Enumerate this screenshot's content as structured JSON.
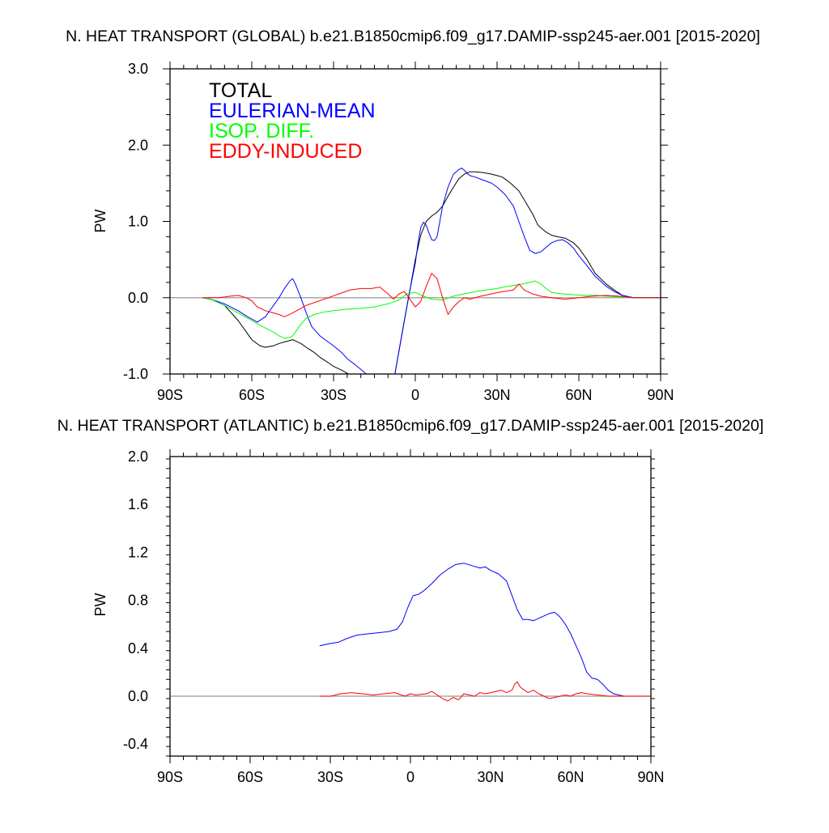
{
  "chart_data": [
    {
      "type": "line",
      "title": "N. HEAT TRANSPORT (GLOBAL) b.e21.B1850cmip6.f09_g17.DAMIP-ssp245-aer.001 [2015-2020]",
      "ylabel": "PW",
      "xlabel": "",
      "xlim": [
        -90,
        90
      ],
      "ylim": [
        -1.0,
        3.0
      ],
      "xticks": [
        -90,
        -60,
        -30,
        0,
        30,
        60,
        90
      ],
      "xtick_labels": [
        "90S",
        "60S",
        "30S",
        "0",
        "30N",
        "60N",
        "90N"
      ],
      "yticks": [
        -1.0,
        0.0,
        1.0,
        2.0,
        3.0
      ],
      "ytick_labels": [
        "-1.0",
        "0.0",
        "1.0",
        "2.0",
        "3.0"
      ],
      "zero_line": true,
      "legend_placement": "top-left",
      "series": [
        {
          "name": "TOTAL",
          "color": "#000000",
          "x": [
            -78,
            -75,
            -70,
            -65,
            -62,
            -60,
            -57,
            -55,
            -52,
            -50,
            -47,
            -45,
            -42,
            -40,
            -37,
            -35,
            -32,
            -30,
            -27,
            -25,
            -22,
            -20,
            -18,
            -15,
            -12,
            -10,
            -8,
            -6,
            -4,
            -2,
            0,
            2,
            4,
            6,
            8,
            10,
            12,
            14,
            16,
            18,
            20,
            22,
            25,
            28,
            30,
            32,
            35,
            38,
            40,
            43,
            45,
            48,
            50,
            52,
            55,
            58,
            60,
            63,
            66,
            70,
            73,
            76,
            80,
            85,
            90
          ],
          "y": [
            0.0,
            -0.02,
            -0.1,
            -0.3,
            -0.45,
            -0.55,
            -0.63,
            -0.65,
            -0.63,
            -0.6,
            -0.57,
            -0.55,
            -0.6,
            -0.65,
            -0.72,
            -0.78,
            -0.85,
            -0.9,
            -0.95,
            -0.99,
            -1.05,
            -1.1,
            -1.15,
            -1.25,
            -1.35,
            -1.4,
            -1.1,
            -0.7,
            -0.3,
            0.1,
            0.5,
            0.82,
            1.0,
            1.07,
            1.12,
            1.2,
            1.33,
            1.45,
            1.56,
            1.62,
            1.65,
            1.65,
            1.64,
            1.62,
            1.6,
            1.58,
            1.5,
            1.4,
            1.28,
            1.1,
            0.95,
            0.86,
            0.82,
            0.8,
            0.78,
            0.72,
            0.65,
            0.5,
            0.32,
            0.18,
            0.1,
            0.03,
            0.0,
            0.0,
            0.0
          ]
        },
        {
          "name": "EULERIAN-MEAN",
          "color": "#0000ff",
          "x": [
            -78,
            -75,
            -70,
            -65,
            -62,
            -60,
            -58,
            -55,
            -52,
            -50,
            -48,
            -46,
            -45,
            -44,
            -42,
            -40,
            -38,
            -35,
            -32,
            -30,
            -27,
            -25,
            -22,
            -20,
            -18,
            -15,
            -12,
            -10,
            -8,
            -6,
            -4,
            -2,
            0,
            1,
            2,
            3,
            4,
            5,
            6,
            7,
            8,
            9,
            10,
            12,
            14,
            16,
            17,
            18,
            19,
            20,
            22,
            25,
            28,
            30,
            33,
            36,
            38,
            40,
            42,
            44,
            46,
            48,
            50,
            52,
            54,
            56,
            58,
            60,
            63,
            66,
            70,
            73,
            76,
            80,
            85,
            90
          ],
          "y": [
            0.0,
            -0.02,
            -0.08,
            -0.17,
            -0.24,
            -0.28,
            -0.32,
            -0.25,
            -0.1,
            0.0,
            0.12,
            0.22,
            0.25,
            0.18,
            0.0,
            -0.2,
            -0.38,
            -0.5,
            -0.58,
            -0.63,
            -0.72,
            -0.8,
            -0.88,
            -0.94,
            -1.0,
            -1.1,
            -1.2,
            -1.3,
            -1.1,
            -0.7,
            -0.3,
            0.1,
            0.45,
            0.72,
            0.92,
            0.99,
            0.95,
            0.85,
            0.76,
            0.75,
            0.8,
            1.0,
            1.2,
            1.45,
            1.62,
            1.68,
            1.7,
            1.67,
            1.63,
            1.6,
            1.58,
            1.54,
            1.5,
            1.45,
            1.35,
            1.2,
            1.0,
            0.8,
            0.62,
            0.58,
            0.6,
            0.66,
            0.72,
            0.75,
            0.76,
            0.72,
            0.65,
            0.55,
            0.42,
            0.28,
            0.15,
            0.08,
            0.03,
            0.0,
            0.0,
            0.0
          ]
        },
        {
          "name": "ISOP. DIFF.",
          "color": "#00ff00",
          "x": [
            -78,
            -75,
            -70,
            -65,
            -60,
            -56,
            -52,
            -50,
            -48,
            -46,
            -45,
            -44,
            -42,
            -40,
            -37,
            -34,
            -30,
            -25,
            -20,
            -15,
            -10,
            -6,
            -3,
            0,
            3,
            6,
            10,
            14,
            18,
            22,
            26,
            30,
            34,
            38,
            42,
            44,
            46,
            48,
            50,
            54,
            58,
            62,
            66,
            70,
            75,
            80,
            85,
            90
          ],
          "y": [
            0.0,
            -0.02,
            -0.1,
            -0.2,
            -0.3,
            -0.38,
            -0.45,
            -0.5,
            -0.53,
            -0.52,
            -0.5,
            -0.45,
            -0.35,
            -0.27,
            -0.22,
            -0.19,
            -0.17,
            -0.15,
            -0.14,
            -0.12,
            -0.08,
            -0.03,
            0.05,
            0.07,
            0.02,
            -0.02,
            -0.03,
            0.02,
            0.05,
            0.08,
            0.1,
            0.12,
            0.15,
            0.17,
            0.2,
            0.22,
            0.18,
            0.12,
            0.07,
            0.05,
            0.04,
            0.03,
            0.03,
            0.02,
            0.01,
            0.0,
            0.0,
            0.0
          ]
        },
        {
          "name": "EDDY-INDUCED",
          "color": "#ff0000",
          "x": [
            -78,
            -72,
            -68,
            -65,
            -62,
            -60,
            -58,
            -55,
            -52,
            -50,
            -48,
            -45,
            -42,
            -40,
            -36,
            -32,
            -28,
            -24,
            -20,
            -16,
            -13,
            -10,
            -8,
            -6,
            -4,
            -2,
            0,
            2,
            4,
            6,
            8,
            10,
            12,
            14,
            16,
            18,
            20,
            24,
            28,
            32,
            36,
            38,
            40,
            43,
            46,
            50,
            55,
            60,
            65,
            70,
            75,
            80,
            85,
            90
          ],
          "y": [
            0.0,
            0.0,
            0.02,
            0.03,
            0.0,
            -0.04,
            -0.12,
            -0.17,
            -0.2,
            -0.22,
            -0.25,
            -0.2,
            -0.14,
            -0.1,
            -0.05,
            0.0,
            0.05,
            0.1,
            0.12,
            0.12,
            0.14,
            0.05,
            -0.02,
            0.05,
            0.08,
            -0.02,
            -0.12,
            -0.05,
            0.15,
            0.32,
            0.25,
            0.0,
            -0.22,
            -0.12,
            -0.05,
            0.0,
            -0.02,
            0.02,
            0.05,
            0.08,
            0.1,
            0.18,
            0.1,
            0.05,
            0.02,
            0.0,
            -0.02,
            0.0,
            0.02,
            0.03,
            0.02,
            0.0,
            0.0,
            0.0
          ]
        }
      ]
    },
    {
      "type": "line",
      "title": "N. HEAT TRANSPORT (ATLANTIC) b.e21.B1850cmip6.f09_g17.DAMIP-ssp245-aer.001 [2015-2020]",
      "ylabel": "PW",
      "xlabel": "",
      "xlim": [
        -90,
        90
      ],
      "ylim": [
        -0.5,
        2.0
      ],
      "xticks": [
        -90,
        -60,
        -30,
        0,
        30,
        60,
        90
      ],
      "xtick_labels": [
        "90S",
        "60S",
        "30S",
        "0",
        "30N",
        "60N",
        "90N"
      ],
      "yticks": [
        -0.4,
        0.0,
        0.4,
        0.8,
        1.2,
        1.6,
        2.0
      ],
      "ytick_labels": [
        "-0.4",
        "0.0",
        "0.4",
        "0.8",
        "1.2",
        "1.6",
        "2.0"
      ],
      "zero_line": true,
      "series": [
        {
          "name": "",
          "color": "#0000ff",
          "x": [
            -34,
            -30,
            -27,
            -24,
            -20,
            -16,
            -12,
            -8,
            -5,
            -3,
            -1,
            1,
            3,
            5,
            8,
            11,
            14,
            17,
            20,
            23,
            26,
            28,
            30,
            33,
            36,
            38,
            40,
            42,
            44,
            46,
            48,
            50,
            52,
            54,
            56,
            58,
            60,
            62,
            64,
            66,
            68,
            70,
            72,
            74,
            76,
            80,
            85,
            90
          ],
          "y": [
            0.42,
            0.44,
            0.45,
            0.48,
            0.51,
            0.52,
            0.53,
            0.54,
            0.56,
            0.62,
            0.74,
            0.84,
            0.85,
            0.88,
            0.94,
            1.01,
            1.06,
            1.1,
            1.11,
            1.09,
            1.07,
            1.08,
            1.05,
            1.02,
            0.96,
            0.84,
            0.72,
            0.64,
            0.64,
            0.63,
            0.65,
            0.67,
            0.69,
            0.7,
            0.66,
            0.6,
            0.52,
            0.42,
            0.32,
            0.2,
            0.15,
            0.14,
            0.1,
            0.05,
            0.02,
            0.0,
            0.0,
            0.0
          ]
        },
        {
          "name": "",
          "color": "#ff0000",
          "x": [
            -34,
            -30,
            -26,
            -22,
            -18,
            -14,
            -10,
            -6,
            -2,
            0,
            2,
            6,
            8,
            10,
            12,
            14,
            16,
            18,
            20,
            22,
            24,
            26,
            28,
            30,
            32,
            34,
            36,
            38,
            39,
            40,
            41,
            42,
            44,
            46,
            48,
            50,
            52,
            54,
            56,
            58,
            60,
            62,
            64,
            66,
            70,
            74,
            78,
            82,
            86,
            90
          ],
          "y": [
            0.0,
            0.0,
            0.02,
            0.03,
            0.02,
            0.01,
            0.02,
            0.03,
            0.0,
            0.02,
            0.01,
            0.02,
            0.04,
            0.01,
            -0.02,
            -0.04,
            -0.01,
            -0.03,
            0.02,
            0.01,
            0.0,
            0.03,
            0.02,
            0.03,
            0.04,
            0.05,
            0.03,
            0.05,
            0.1,
            0.12,
            0.08,
            0.06,
            0.03,
            0.05,
            0.02,
            0.0,
            -0.02,
            -0.01,
            0.0,
            0.01,
            0.0,
            0.02,
            0.03,
            0.02,
            0.01,
            0.0,
            0.0,
            0.0,
            0.0,
            0.0
          ]
        }
      ]
    }
  ]
}
